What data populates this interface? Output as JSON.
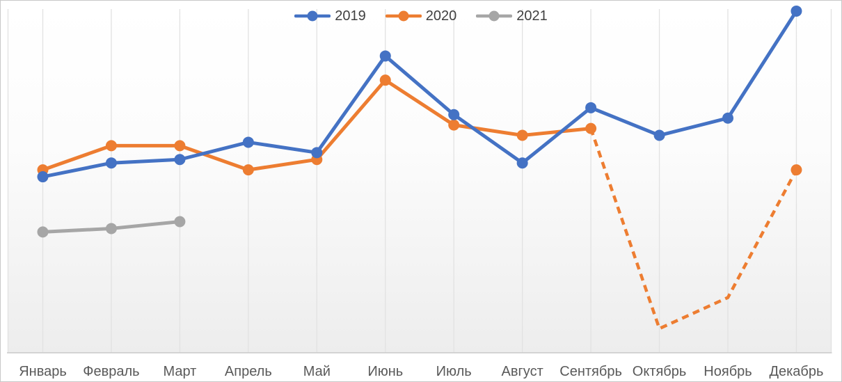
{
  "chart_data": {
    "type": "line",
    "title": "",
    "xlabel": "",
    "ylabel": "",
    "categories": [
      "Январь",
      "Февраль",
      "Март",
      "Апрель",
      "Май",
      "Июнь",
      "Июль",
      "Август",
      "Сентябрь",
      "Октябрь",
      "Ноябрь",
      "Декабрь"
    ],
    "series": [
      {
        "name": "2019",
        "color": "#4472C4",
        "line_style": "solid",
        "values": [
          51,
          55,
          56,
          61,
          58,
          86,
          69,
          55,
          71,
          63,
          68,
          99
        ]
      },
      {
        "name": "2020",
        "color": "#ED7D31",
        "line_style": "solid-then-dashed",
        "dash_from_index": 8,
        "hidden_marker_indices": [
          9,
          10
        ],
        "values": [
          53,
          60,
          60,
          53,
          56,
          79,
          66,
          63,
          65,
          7,
          16,
          53
        ]
      },
      {
        "name": "2021",
        "color": "#A6A6A6",
        "line_style": "solid",
        "values": [
          35,
          36,
          38
        ]
      }
    ],
    "ylim": [
      0,
      100
    ],
    "y_axis_visible": false,
    "grid": "vertical",
    "legend_position": "top-center",
    "marker": "circle"
  },
  "colors": {
    "grid_line": "#e2e2e2",
    "axis_line": "#c9c9c9",
    "axis_text": "#595959",
    "legend_text": "#404040",
    "frame_border": "#c8c8c8"
  }
}
